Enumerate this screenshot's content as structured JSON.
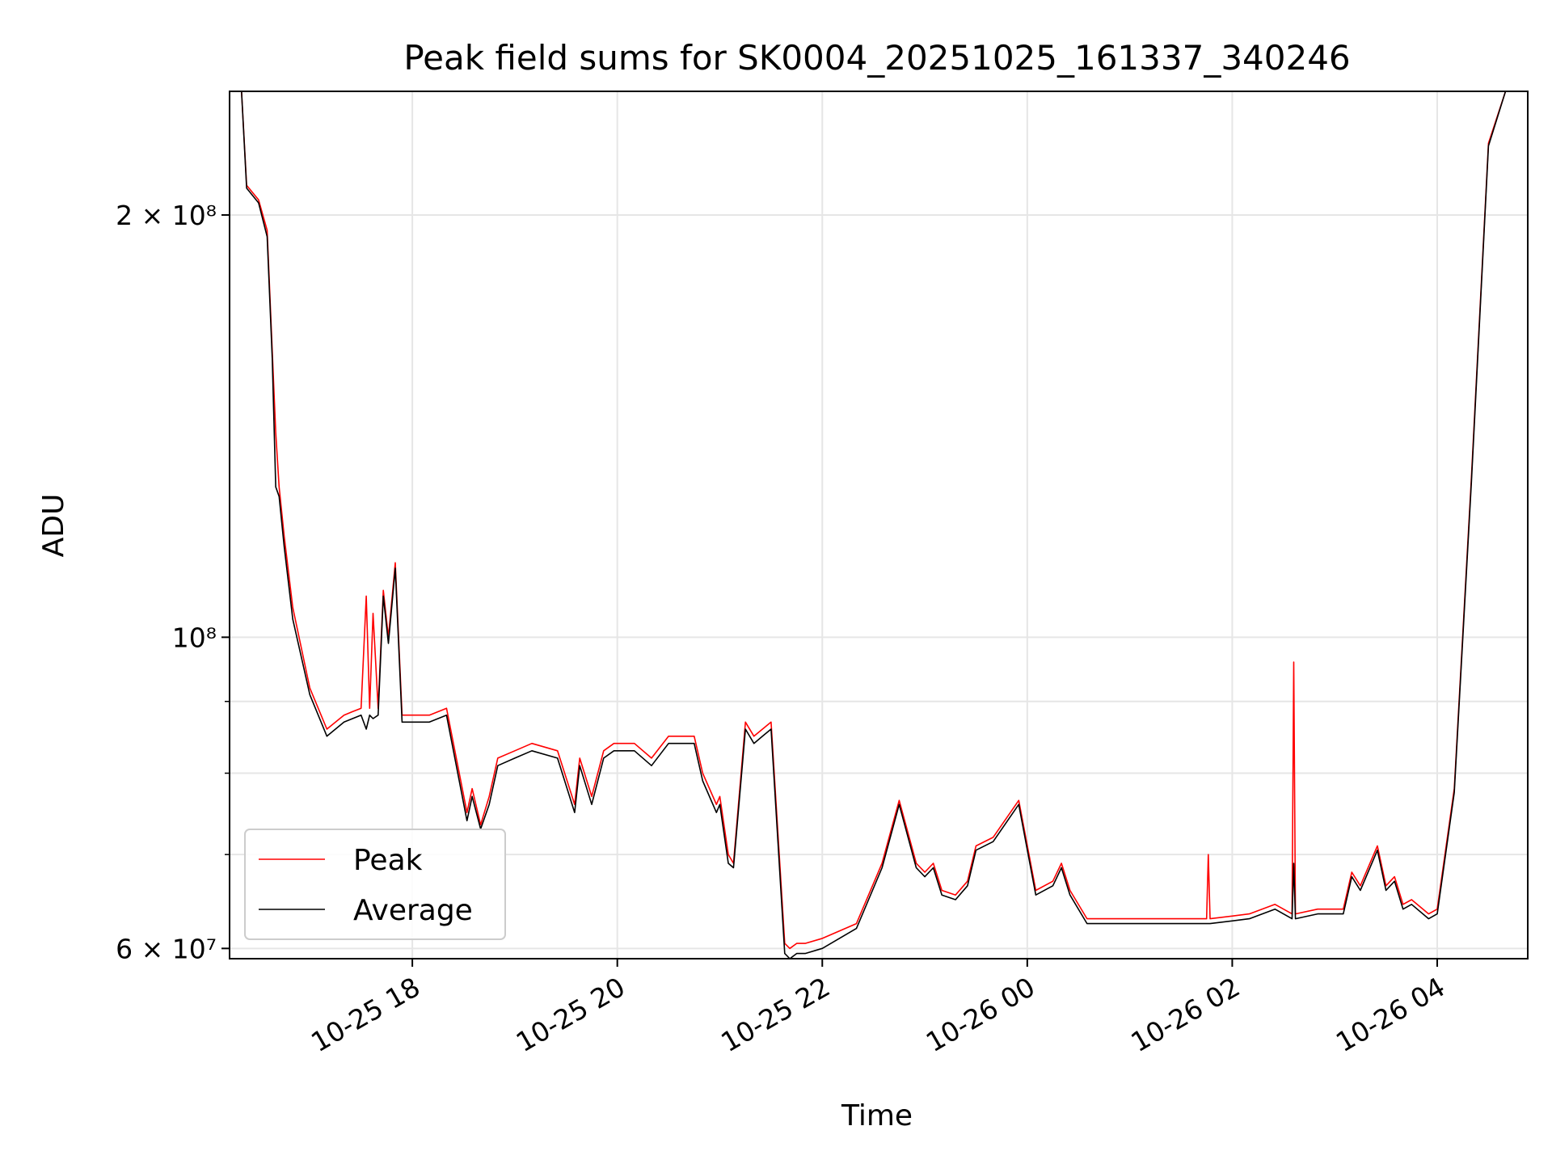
{
  "chart_data": {
    "type": "line",
    "title": "Peak field sums for SK0004_20251025_161337_340246",
    "xlabel": "Time",
    "ylabel": "ADU",
    "y_scale": "log",
    "ylim": [
      59000000,
      245000000
    ],
    "xlim": [
      "2025-10-25 16:13",
      "2025-10-26 04:53"
    ],
    "grid": true,
    "legend_position": "lower-left",
    "x_ticks": [
      {
        "value": "2025-10-25 18:00",
        "label": "10-25 18"
      },
      {
        "value": "2025-10-25 20:00",
        "label": "10-25 20"
      },
      {
        "value": "2025-10-25 22:00",
        "label": "10-25 22"
      },
      {
        "value": "2025-10-26 00:00",
        "label": "10-26 00"
      },
      {
        "value": "2025-10-26 02:00",
        "label": "10-26 02"
      },
      {
        "value": "2025-10-26 04:00",
        "label": "10-26 04"
      }
    ],
    "y_ticks": [
      {
        "value": 200000000,
        "label": "2 × 10⁸"
      },
      {
        "value": 100000000,
        "label": "10⁸"
      },
      {
        "value": 60000000,
        "label": "6 × 10⁷"
      }
    ],
    "y_minor_ticks": [
      70000000,
      80000000,
      90000000
    ],
    "series": [
      {
        "name": "Peak",
        "color": "#ff0000",
        "x": [
          "2025-10-25 16:13",
          "2025-10-25 16:20",
          "2025-10-25 16:23",
          "2025-10-25 16:30",
          "2025-10-25 16:35",
          "2025-10-25 16:38",
          "2025-10-25 16:40",
          "2025-10-25 16:42",
          "2025-10-25 16:45",
          "2025-10-25 16:50",
          "2025-10-25 17:00",
          "2025-10-25 17:10",
          "2025-10-25 17:20",
          "2025-10-25 17:25",
          "2025-10-25 17:30",
          "2025-10-25 17:33",
          "2025-10-25 17:35",
          "2025-10-25 17:37",
          "2025-10-25 17:40",
          "2025-10-25 17:43",
          "2025-10-25 17:46",
          "2025-10-25 17:50",
          "2025-10-25 17:54",
          "2025-10-25 18:00",
          "2025-10-25 18:10",
          "2025-10-25 18:20",
          "2025-10-25 18:32",
          "2025-10-25 18:35",
          "2025-10-25 18:40",
          "2025-10-25 18:45",
          "2025-10-25 18:50",
          "2025-10-25 19:00",
          "2025-10-25 19:10",
          "2025-10-25 19:25",
          "2025-10-25 19:35",
          "2025-10-25 19:38",
          "2025-10-25 19:45",
          "2025-10-25 19:52",
          "2025-10-25 19:58",
          "2025-10-25 20:10",
          "2025-10-25 20:20",
          "2025-10-25 20:30",
          "2025-10-25 20:45",
          "2025-10-25 20:50",
          "2025-10-25 20:58",
          "2025-10-25 21:00",
          "2025-10-25 21:05",
          "2025-10-25 21:08",
          "2025-10-25 21:15",
          "2025-10-25 21:20",
          "2025-10-25 21:25",
          "2025-10-25 21:30",
          "2025-10-25 21:38",
          "2025-10-25 21:41",
          "2025-10-25 21:45",
          "2025-10-25 21:50",
          "2025-10-25 22:00",
          "2025-10-25 22:20",
          "2025-10-25 22:35",
          "2025-10-25 22:45",
          "2025-10-25 22:55",
          "2025-10-25 23:00",
          "2025-10-25 23:05",
          "2025-10-25 23:10",
          "2025-10-25 23:18",
          "2025-10-25 23:25",
          "2025-10-25 23:30",
          "2025-10-25 23:40",
          "2025-10-25 23:55",
          "2025-10-26 00:05",
          "2025-10-26 00:15",
          "2025-10-26 00:20",
          "2025-10-26 00:25",
          "2025-10-26 00:35",
          "2025-10-26 00:45",
          "2025-10-26 00:55",
          "2025-10-26 01:10",
          "2025-10-26 01:30",
          "2025-10-26 01:45",
          "2025-10-26 01:46",
          "2025-10-26 01:47",
          "2025-10-26 02:10",
          "2025-10-26 02:25",
          "2025-10-26 02:35",
          "2025-10-26 02:36",
          "2025-10-26 02:37",
          "2025-10-26 02:50",
          "2025-10-26 03:05",
          "2025-10-26 03:10",
          "2025-10-26 03:15",
          "2025-10-26 03:25",
          "2025-10-26 03:30",
          "2025-10-26 03:35",
          "2025-10-26 03:40",
          "2025-10-26 03:45",
          "2025-10-26 03:55",
          "2025-10-26 04:00",
          "2025-10-26 04:10",
          "2025-10-26 04:20",
          "2025-10-26 04:30",
          "2025-10-26 04:40",
          "2025-10-26 04:45",
          "2025-10-26 04:53"
        ],
        "y": [
          245000000,
          245000000,
          210000000,
          205000000,
          195000000,
          160000000,
          140000000,
          128000000,
          118000000,
          105000000,
          92000000,
          86000000,
          88000000,
          88500000,
          89000000,
          107000000,
          89000000,
          104000000,
          89000000,
          108000000,
          100000000,
          113000000,
          88000000,
          88000000,
          88000000,
          89000000,
          75000000,
          78000000,
          73500000,
          77000000,
          82000000,
          83000000,
          84000000,
          83000000,
          76000000,
          82000000,
          77000000,
          83000000,
          84000000,
          84000000,
          82000000,
          85000000,
          85000000,
          80000000,
          76000000,
          77000000,
          70000000,
          69000000,
          87000000,
          85000000,
          86000000,
          87000000,
          60500000,
          60000000,
          60500000,
          60500000,
          61000000,
          62500000,
          69000000,
          76500000,
          69000000,
          68000000,
          69000000,
          66000000,
          65500000,
          67000000,
          71000000,
          72000000,
          76500000,
          66000000,
          67000000,
          69000000,
          66000000,
          63000000,
          63000000,
          63000000,
          63000000,
          63000000,
          63000000,
          70000000,
          63000000,
          63500000,
          64500000,
          63500000,
          96000000,
          63500000,
          64000000,
          64000000,
          68000000,
          66500000,
          71000000,
          66500000,
          67500000,
          64500000,
          65000000,
          63500000,
          64000000,
          78000000,
          130000000,
          225000000,
          245000000,
          245000000,
          245000000
        ]
      },
      {
        "name": "Average",
        "color": "#000000",
        "x": [
          "2025-10-25 16:13",
          "2025-10-25 16:20",
          "2025-10-25 16:23",
          "2025-10-25 16:30",
          "2025-10-25 16:35",
          "2025-10-25 16:38",
          "2025-10-25 16:40",
          "2025-10-25 16:42",
          "2025-10-25 16:45",
          "2025-10-25 16:50",
          "2025-10-25 17:00",
          "2025-10-25 17:10",
          "2025-10-25 17:20",
          "2025-10-25 17:25",
          "2025-10-25 17:30",
          "2025-10-25 17:33",
          "2025-10-25 17:35",
          "2025-10-25 17:37",
          "2025-10-25 17:40",
          "2025-10-25 17:43",
          "2025-10-25 17:46",
          "2025-10-25 17:50",
          "2025-10-25 17:54",
          "2025-10-25 18:00",
          "2025-10-25 18:10",
          "2025-10-25 18:20",
          "2025-10-25 18:32",
          "2025-10-25 18:35",
          "2025-10-25 18:40",
          "2025-10-25 18:45",
          "2025-10-25 18:50",
          "2025-10-25 19:00",
          "2025-10-25 19:10",
          "2025-10-25 19:25",
          "2025-10-25 19:35",
          "2025-10-25 19:38",
          "2025-10-25 19:45",
          "2025-10-25 19:52",
          "2025-10-25 19:58",
          "2025-10-25 20:10",
          "2025-10-25 20:20",
          "2025-10-25 20:30",
          "2025-10-25 20:45",
          "2025-10-25 20:50",
          "2025-10-25 20:58",
          "2025-10-25 21:00",
          "2025-10-25 21:05",
          "2025-10-25 21:08",
          "2025-10-25 21:15",
          "2025-10-25 21:20",
          "2025-10-25 21:25",
          "2025-10-25 21:30",
          "2025-10-25 21:38",
          "2025-10-25 21:41",
          "2025-10-25 21:45",
          "2025-10-25 21:50",
          "2025-10-25 22:00",
          "2025-10-25 22:20",
          "2025-10-25 22:35",
          "2025-10-25 22:45",
          "2025-10-25 22:55",
          "2025-10-25 23:00",
          "2025-10-25 23:05",
          "2025-10-25 23:10",
          "2025-10-25 23:18",
          "2025-10-25 23:25",
          "2025-10-25 23:30",
          "2025-10-25 23:40",
          "2025-10-25 23:55",
          "2025-10-26 00:05",
          "2025-10-26 00:15",
          "2025-10-26 00:20",
          "2025-10-26 00:25",
          "2025-10-26 00:35",
          "2025-10-26 00:45",
          "2025-10-26 00:55",
          "2025-10-26 01:10",
          "2025-10-26 01:30",
          "2025-10-26 01:45",
          "2025-10-26 01:46",
          "2025-10-26 01:47",
          "2025-10-26 02:10",
          "2025-10-26 02:25",
          "2025-10-26 02:35",
          "2025-10-26 02:36",
          "2025-10-26 02:37",
          "2025-10-26 02:50",
          "2025-10-26 03:05",
          "2025-10-26 03:10",
          "2025-10-26 03:15",
          "2025-10-26 03:25",
          "2025-10-26 03:30",
          "2025-10-26 03:35",
          "2025-10-26 03:40",
          "2025-10-26 03:45",
          "2025-10-26 03:55",
          "2025-10-26 04:00",
          "2025-10-26 04:10",
          "2025-10-26 04:20",
          "2025-10-26 04:30",
          "2025-10-26 04:40",
          "2025-10-26 04:45",
          "2025-10-26 04:53"
        ],
        "y": [
          245000000,
          245000000,
          209000000,
          204000000,
          193000000,
          158000000,
          128000000,
          126000000,
          116000000,
          103000000,
          91000000,
          85000000,
          87000000,
          87500000,
          88000000,
          86000000,
          88000000,
          87500000,
          88000000,
          107000000,
          99000000,
          112000000,
          87000000,
          87000000,
          87000000,
          88000000,
          74000000,
          77000000,
          73000000,
          76000000,
          81000000,
          82000000,
          83000000,
          82000000,
          75000000,
          81000000,
          76000000,
          82000000,
          83000000,
          83000000,
          81000000,
          84000000,
          84000000,
          79000000,
          75000000,
          76000000,
          69000000,
          68500000,
          86000000,
          84000000,
          85000000,
          86000000,
          59500000,
          59000000,
          59500000,
          59500000,
          60000000,
          62000000,
          68500000,
          76000000,
          68500000,
          67500000,
          68500000,
          65500000,
          65000000,
          66500000,
          70500000,
          71500000,
          76000000,
          65500000,
          66500000,
          68500000,
          65500000,
          62500000,
          62500000,
          62500000,
          62500000,
          62500000,
          62500000,
          62500000,
          62500000,
          63000000,
          64000000,
          63000000,
          69000000,
          63000000,
          63500000,
          63500000,
          67500000,
          66000000,
          70500000,
          66000000,
          67000000,
          64000000,
          64500000,
          63000000,
          63500000,
          77500000,
          129000000,
          224000000,
          245000000,
          245000000,
          245000000
        ]
      }
    ]
  }
}
